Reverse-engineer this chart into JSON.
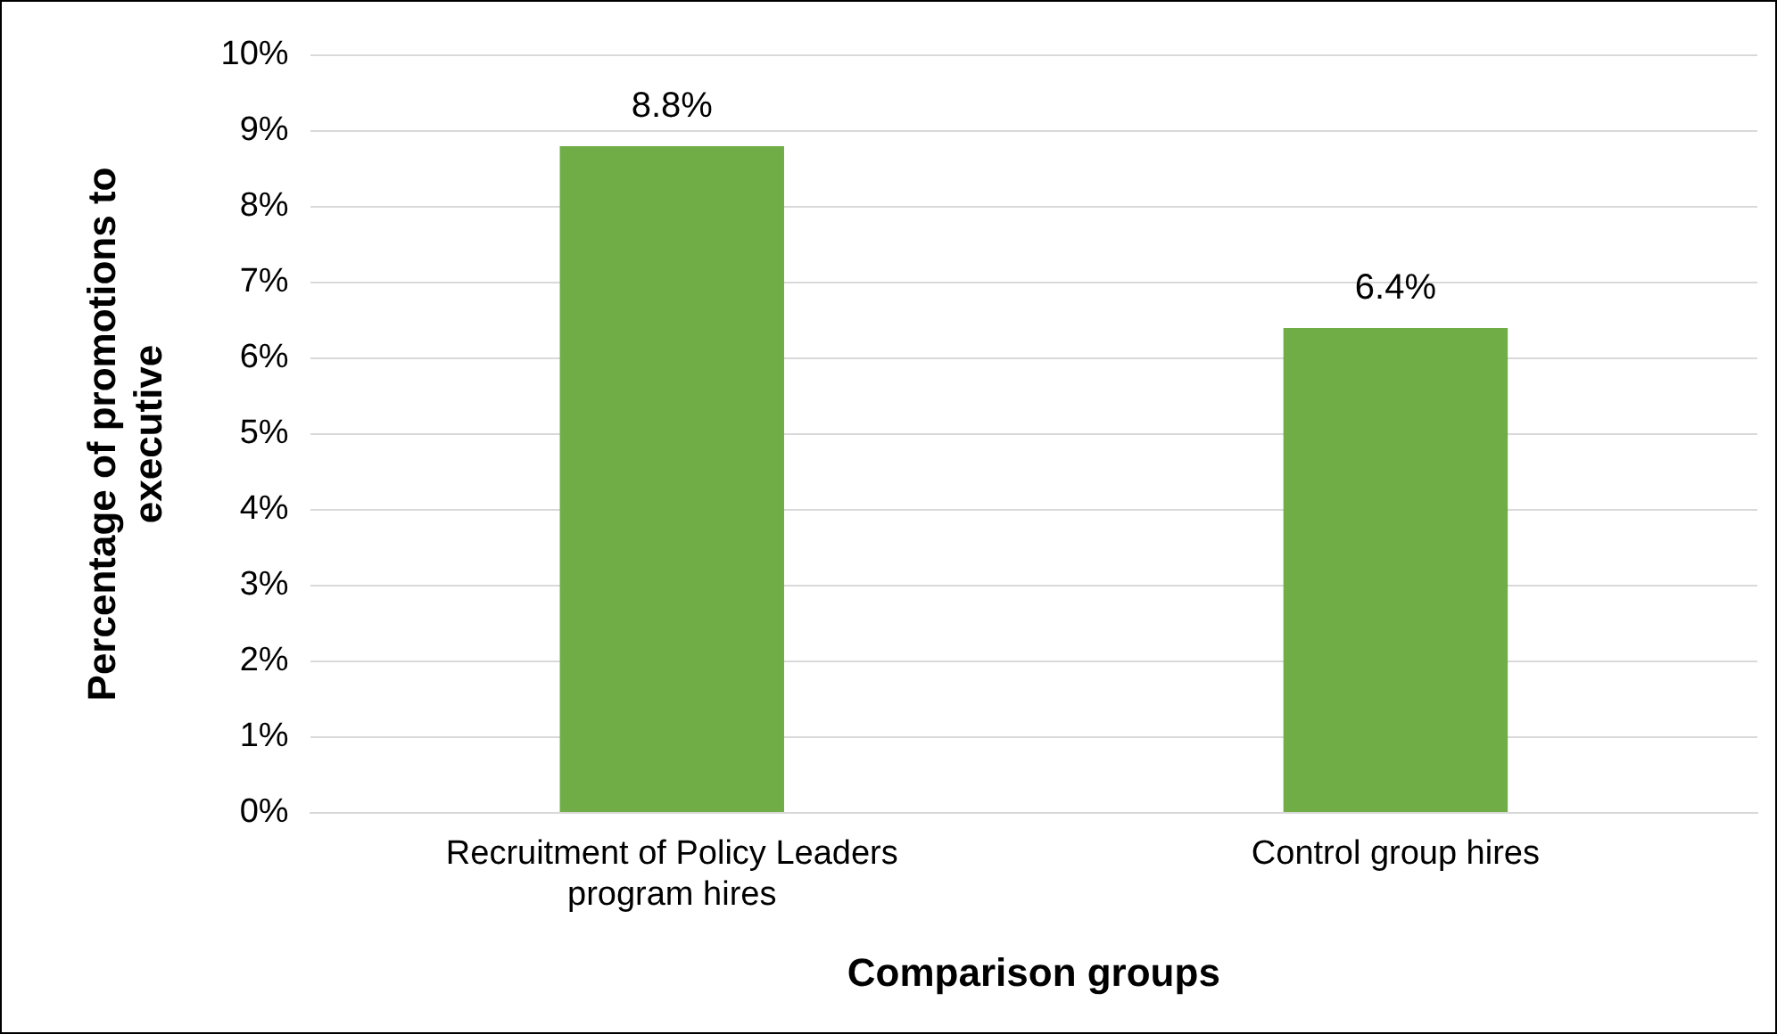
{
  "chart_data": {
    "type": "bar",
    "xlabel": "Comparison groups",
    "ylabel": "Percentage of promotions to executive",
    "categories": [
      "Recruitment of Policy Leaders program hires",
      "Control group hires"
    ],
    "values": [
      8.8,
      6.4
    ],
    "color": "#70ad47",
    "value_labels": [
      "8.8%",
      "6.4%"
    ],
    "ylim": [
      0,
      10
    ],
    "yticks": [
      {
        "value": 0,
        "label": "0%"
      },
      {
        "value": 1,
        "label": "1%"
      },
      {
        "value": 2,
        "label": "2%"
      },
      {
        "value": 3,
        "label": "3%"
      },
      {
        "value": 4,
        "label": "4%"
      },
      {
        "value": 5,
        "label": "5%"
      },
      {
        "value": 6,
        "label": "6%"
      },
      {
        "value": 7,
        "label": "7%"
      },
      {
        "value": 8,
        "label": "8%"
      },
      {
        "value": 9,
        "label": "9%"
      },
      {
        "value": 10,
        "label": "10%"
      }
    ],
    "grid": "y",
    "legend": false
  }
}
